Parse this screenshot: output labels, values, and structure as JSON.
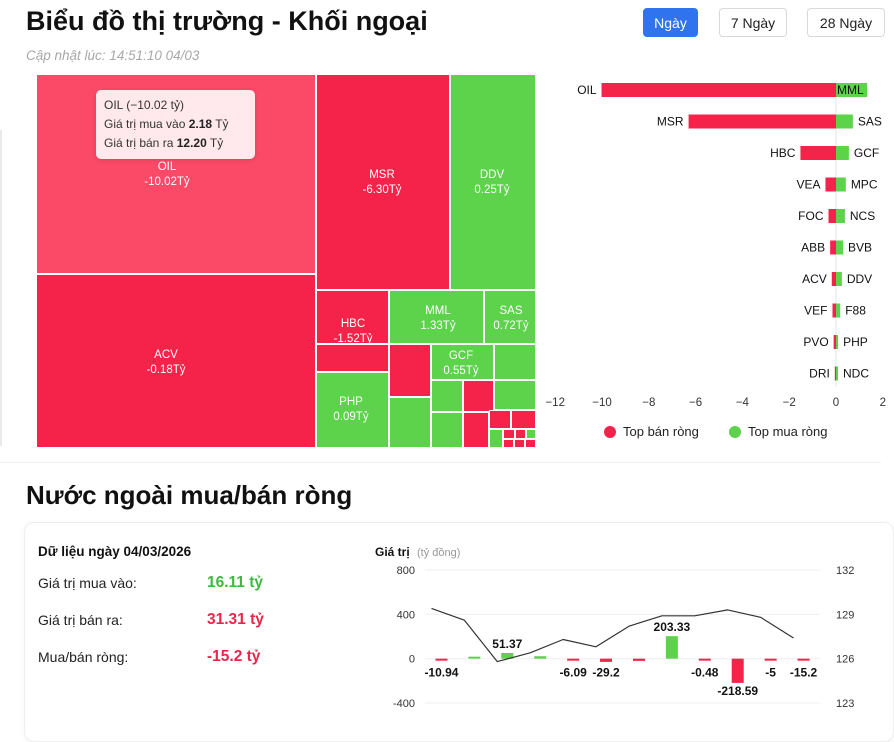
{
  "header": {
    "title": "Biểu đồ thị trường - Khối ngoại",
    "update_label": "Cập nhật lúc:",
    "update_time": "14:51:10 04/03",
    "ranges": [
      {
        "label": "Ngày",
        "active": true
      },
      {
        "label": "7 Ngày",
        "active": false
      },
      {
        "label": "28 Ngày",
        "active": false
      }
    ]
  },
  "treemap": {
    "unit": "Tỷ",
    "colors": {
      "sell": "#f5234a",
      "buy": "#5dd24b",
      "sell_hover": "#fa4a68"
    },
    "cells": [
      {
        "code": "OIL",
        "value": "-10.02",
        "side": "sell",
        "label": true
      },
      {
        "code": "MSR",
        "value": "-6.30",
        "side": "sell",
        "label": true
      },
      {
        "code": "DDV",
        "value": "0.25",
        "side": "buy",
        "label": true
      },
      {
        "code": "ACV",
        "value": "-0.18",
        "side": "sell",
        "label": true
      },
      {
        "code": "HBC",
        "value": "-1.52",
        "side": "sell",
        "label": true
      },
      {
        "code": "MML",
        "value": "1.33",
        "side": "buy",
        "label": true
      },
      {
        "code": "SAS",
        "value": "0.72",
        "side": "buy",
        "label": true
      },
      {
        "code": "GCF",
        "value": "0.55",
        "side": "buy",
        "label": true
      },
      {
        "code": "PHP",
        "value": "0.09",
        "side": "buy",
        "label": true
      }
    ],
    "tooltip": {
      "code": "OIL",
      "net_text": "(−10.02 tỷ)",
      "buy_label": "Giá trị mua vào",
      "buy_value": "2.18",
      "sell_label": "Giá trị bán ra",
      "sell_value": "12.20",
      "unit": "Tỷ"
    }
  },
  "net_chart": {
    "rows": [
      {
        "sell_code": "OIL",
        "sell_value": -10.02,
        "buy_code": "MML",
        "buy_value": 1.33
      },
      {
        "sell_code": "MSR",
        "sell_value": -6.3,
        "buy_code": "SAS",
        "buy_value": 0.72
      },
      {
        "sell_code": "HBC",
        "sell_value": -1.52,
        "buy_code": "GCF",
        "buy_value": 0.55
      },
      {
        "sell_code": "VEA",
        "sell_value": -0.45,
        "buy_code": "MPC",
        "buy_value": 0.42
      },
      {
        "sell_code": "FOC",
        "sell_value": -0.32,
        "buy_code": "NCS",
        "buy_value": 0.38
      },
      {
        "sell_code": "ABB",
        "sell_value": -0.25,
        "buy_code": "BVB",
        "buy_value": 0.3
      },
      {
        "sell_code": "ACV",
        "sell_value": -0.18,
        "buy_code": "DDV",
        "buy_value": 0.25
      },
      {
        "sell_code": "VEF",
        "sell_value": -0.15,
        "buy_code": "F88",
        "buy_value": 0.18
      },
      {
        "sell_code": "PVO",
        "sell_value": -0.1,
        "buy_code": "PHP",
        "buy_value": 0.09
      },
      {
        "sell_code": "DRI",
        "sell_value": -0.05,
        "buy_code": "NDC",
        "buy_value": 0.06
      }
    ],
    "x_ticks": [
      "−12",
      "−10",
      "−8",
      "−6",
      "−4",
      "−2",
      "0",
      "2"
    ],
    "xlim": [
      -12,
      2
    ],
    "legend": [
      {
        "label": "Top bán ròng",
        "color": "#f5234a"
      },
      {
        "label": "Top mua ròng",
        "color": "#5dd24b"
      }
    ]
  },
  "net_section": {
    "title": "Nước ngoài mua/bán ròng",
    "date_label": "Dữ liệu ngày 04/03/2026",
    "buy_label": "Giá trị mua vào:",
    "buy_value": "16.11 tỷ",
    "sell_label": "Giá trị bán ra:",
    "sell_value": "31.31 tỷ",
    "net_label": "Mua/bán ròng:",
    "net_value": "-15.2 tỷ",
    "colors": {
      "buy": "#3fb83f",
      "sell": "#e8264b"
    }
  },
  "chart_data": {
    "type": "bar",
    "title": "Giá trị",
    "title_unit": "(tỷ đồng)",
    "values": [
      -10.94,
      12,
      51.37,
      22,
      -6.09,
      -29.2,
      -20,
      203.33,
      -0.48,
      -218.59,
      -5,
      -15.2
    ],
    "labels": [
      "-10.94",
      "",
      "51.37",
      "",
      "-6.09",
      "-29.2",
      "",
      "203.33",
      "-0.48",
      "-218.59",
      "-5",
      "-15.2"
    ],
    "ylim": [
      -400,
      800
    ],
    "y_ticks": [
      "800",
      "400",
      "0",
      "-400"
    ],
    "secondary_series": {
      "name": "",
      "values": [
        129.4,
        128.6,
        125.8,
        126.4,
        127.3,
        126.8,
        128.2,
        128.9,
        128.9,
        129.3,
        128.8,
        127.4
      ],
      "ylim": [
        123,
        132
      ],
      "y_ticks": [
        "132",
        "129",
        "126",
        "123"
      ]
    },
    "colors": {
      "up": "#5dd24b",
      "down": "#f5234a",
      "line": "#333333"
    }
  }
}
